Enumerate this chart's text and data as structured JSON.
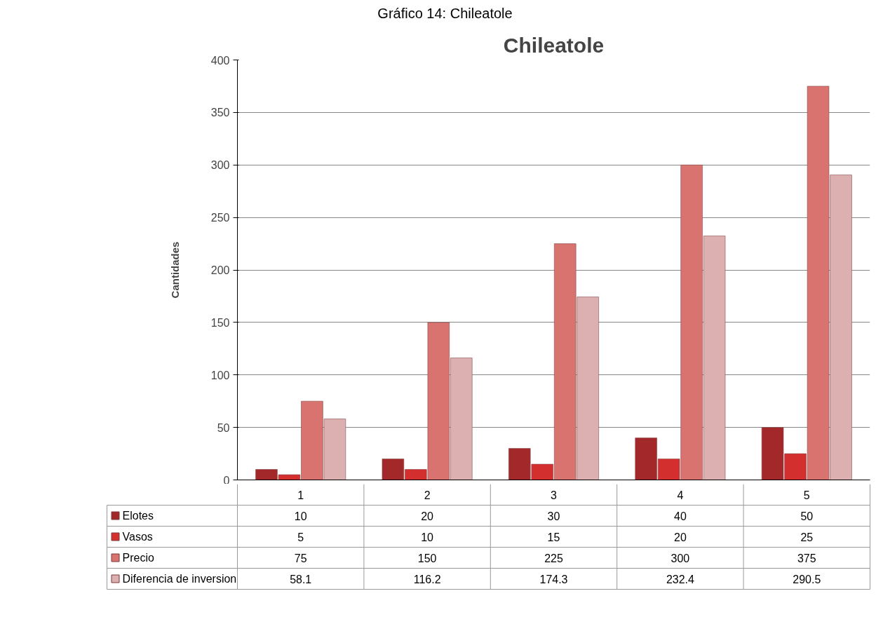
{
  "chart_data": {
    "type": "bar",
    "title": "Chileatole",
    "ylabel": "Cantidades",
    "annotations": [
      "Gráfico 14: Chileatole"
    ],
    "categories": [
      "1",
      "2",
      "3",
      "4",
      "5"
    ],
    "series": [
      {
        "name": "Elotes",
        "color": "#a3282a",
        "values": [
          10,
          20,
          30,
          40,
          50
        ]
      },
      {
        "name": "Vasos",
        "color": "#d42f2f",
        "values": [
          5,
          10,
          15,
          20,
          25
        ]
      },
      {
        "name": "Precio",
        "color": "#d9736f",
        "values": [
          75,
          150,
          225,
          300,
          375
        ]
      },
      {
        "name": "Diferencia de inversion",
        "color": "#dcb0b0",
        "values": [
          58.1,
          116.2,
          174.3,
          232.4,
          290.5
        ]
      }
    ],
    "ylim": [
      0,
      400
    ],
    "yticks": [
      0,
      50,
      100,
      150,
      200,
      250,
      300,
      350,
      400
    ],
    "grid": "y",
    "legend": "bottom",
    "data_labels": true
  }
}
